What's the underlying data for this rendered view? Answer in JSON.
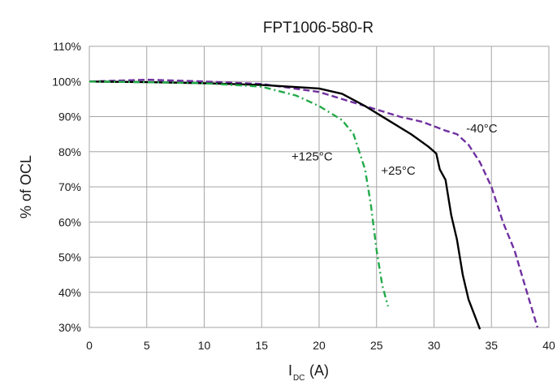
{
  "chart_data": {
    "type": "line",
    "title": "FPT1006-580-R",
    "xlabel": {
      "main": "I",
      "sub": "DC",
      "unit": "(A)"
    },
    "ylabel": "% of OCL",
    "xlim": [
      0,
      40
    ],
    "ylim": [
      30,
      110
    ],
    "x_ticks": [
      0,
      5,
      10,
      15,
      20,
      25,
      30,
      35,
      40
    ],
    "y_ticks": [
      30,
      40,
      50,
      60,
      70,
      80,
      90,
      100,
      110
    ],
    "y_tick_labels": [
      "30%",
      "40%",
      "50%",
      "60%",
      "70%",
      "80%",
      "90%",
      "100%",
      "110%"
    ],
    "x_tick_labels": [
      "0",
      "5",
      "10",
      "15",
      "20",
      "25",
      "30",
      "35",
      "40"
    ],
    "grid": true,
    "legend": "none",
    "series": [
      {
        "name": "-40°C",
        "color": "#7030a0",
        "style": "dashed",
        "points": [
          [
            0,
            100
          ],
          [
            5,
            100.5
          ],
          [
            10,
            100
          ],
          [
            15,
            99.3
          ],
          [
            20,
            97
          ],
          [
            23,
            94
          ],
          [
            25,
            92
          ],
          [
            27,
            90
          ],
          [
            29,
            88.5
          ],
          [
            31,
            86
          ],
          [
            32,
            85
          ],
          [
            33,
            82
          ],
          [
            34,
            77
          ],
          [
            35,
            70
          ],
          [
            36,
            60
          ],
          [
            37,
            52
          ],
          [
            38,
            41
          ],
          [
            39,
            30
          ]
        ]
      },
      {
        "name": "+25°C",
        "color": "#000000",
        "style": "solid",
        "points": [
          [
            0,
            100
          ],
          [
            5,
            99.8
          ],
          [
            10,
            99.5
          ],
          [
            15,
            99
          ],
          [
            20,
            98
          ],
          [
            22,
            96.5
          ],
          [
            24,
            93
          ],
          [
            26,
            89
          ],
          [
            28,
            85
          ],
          [
            29.5,
            81.5
          ],
          [
            30.2,
            79.5
          ],
          [
            30.5,
            75
          ],
          [
            31,
            72
          ],
          [
            31.5,
            62
          ],
          [
            32,
            55
          ],
          [
            32.5,
            45
          ],
          [
            33,
            38
          ],
          [
            34,
            29.5
          ]
        ]
      },
      {
        "name": "+125°C",
        "color": "#22aa48",
        "style": "dashdot",
        "points": [
          [
            0,
            100
          ],
          [
            5,
            99.8
          ],
          [
            10,
            99.5
          ],
          [
            15,
            98.5
          ],
          [
            18,
            96
          ],
          [
            20,
            93
          ],
          [
            22,
            89
          ],
          [
            23,
            85
          ],
          [
            24,
            75
          ],
          [
            24.5,
            65
          ],
          [
            25,
            52
          ],
          [
            25.5,
            42
          ],
          [
            26,
            36
          ]
        ]
      }
    ],
    "annotations": [
      {
        "text": "-40°C",
        "x": 32.8,
        "y": 85.5
      },
      {
        "text": "+25°C",
        "x": 25.4,
        "y": 73.5
      },
      {
        "text": "+125°C",
        "x": 17.6,
        "y": 77.5
      }
    ]
  }
}
